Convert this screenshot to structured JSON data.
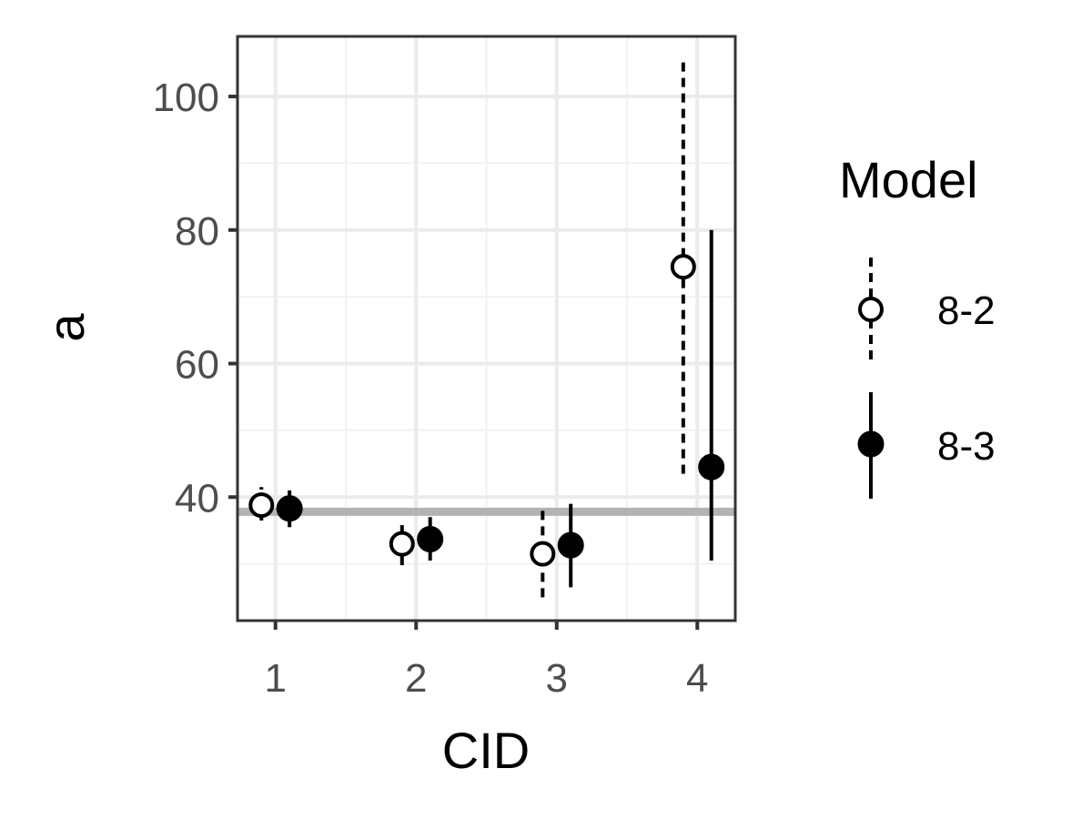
{
  "chart_data": {
    "type": "scatter",
    "title": "",
    "xlabel": "CID",
    "ylabel": "a",
    "x_categories": [
      "1",
      "2",
      "3",
      "4"
    ],
    "xlim": [
      0.73,
      4.27
    ],
    "ylim": [
      21.5,
      109
    ],
    "y_ticks": [
      40,
      60,
      80,
      100
    ],
    "reference_line_y": 37.8,
    "grid": true,
    "legend": {
      "title": "Model",
      "position": "right"
    },
    "series": [
      {
        "name": "8-2",
        "marker": "open-circle",
        "line_style": "dashed",
        "x": [
          0.9,
          1.9,
          2.9,
          3.9
        ],
        "y": [
          38.8,
          33.0,
          31.5,
          74.5
        ],
        "y_lower": [
          36.5,
          29.8,
          25.0,
          43.5
        ],
        "y_upper": [
          41.5,
          36.0,
          38.0,
          105.5
        ]
      },
      {
        "name": "8-3",
        "marker": "filled-circle",
        "line_style": "solid",
        "x": [
          1.1,
          2.1,
          3.1,
          4.1
        ],
        "y": [
          38.3,
          33.7,
          32.8,
          44.5
        ],
        "y_lower": [
          35.5,
          30.5,
          26.5,
          30.5
        ],
        "y_upper": [
          41.0,
          37.0,
          39.0,
          80.0
        ]
      }
    ],
    "colors": {
      "panel_border": "#333333",
      "grid_major": "#ebebeb",
      "grid_minor": "#f2f2f2",
      "reference_line": "#b3b3b3",
      "points": "#000000",
      "ticks": "#333333"
    }
  }
}
